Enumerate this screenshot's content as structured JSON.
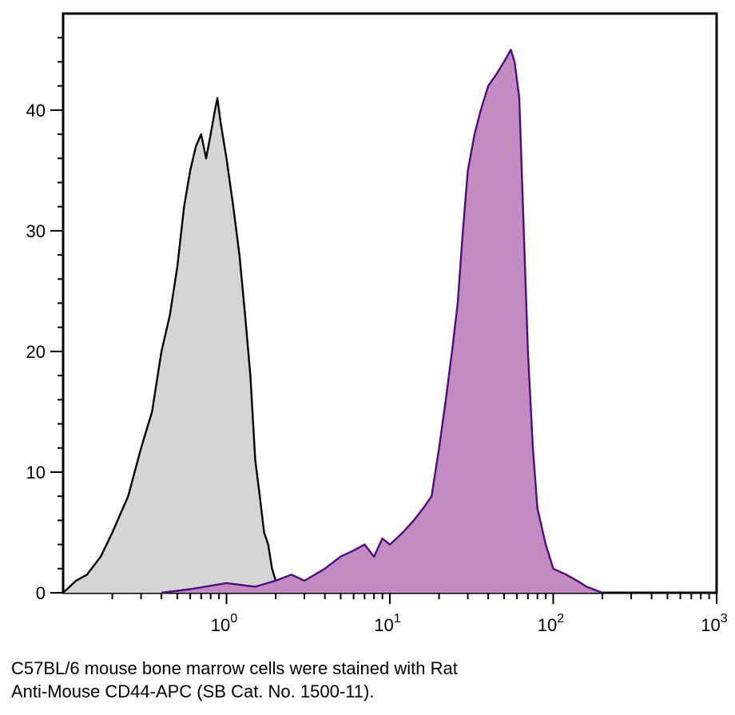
{
  "chart_data": {
    "type": "area",
    "title": "",
    "xlabel": "",
    "ylabel": "",
    "x_scale": "log",
    "xlim": [
      0.1,
      1000
    ],
    "ylim": [
      0,
      48
    ],
    "x_ticks": [
      {
        "value": 1,
        "base": "10",
        "exp": "0"
      },
      {
        "value": 10,
        "base": "10",
        "exp": "1"
      },
      {
        "value": 100,
        "base": "10",
        "exp": "2"
      },
      {
        "value": 1000,
        "base": "10",
        "exp": "3"
      }
    ],
    "y_ticks": [
      0,
      10,
      20,
      30,
      40
    ],
    "grid": false,
    "legend": "none",
    "series": [
      {
        "color": "#000000",
        "fill": "#d5d5d5",
        "x": [
          0.1,
          0.12,
          0.14,
          0.17,
          0.2,
          0.25,
          0.3,
          0.35,
          0.4,
          0.45,
          0.5,
          0.55,
          0.6,
          0.65,
          0.7,
          0.75,
          0.8,
          0.85,
          0.88,
          0.92,
          1.0,
          1.1,
          1.2,
          1.3,
          1.4,
          1.5,
          1.6,
          1.7,
          1.8,
          1.9,
          2.0,
          2.1,
          2.25
        ],
        "y": [
          0,
          1,
          1.5,
          3,
          5,
          8,
          12,
          15,
          20,
          23,
          27,
          32,
          35,
          37,
          38,
          36,
          38,
          40,
          41,
          39,
          36,
          32,
          28,
          23,
          18,
          11,
          8,
          5,
          4,
          2,
          1,
          0.5,
          0
        ]
      },
      {
        "color": "#4b0e7d",
        "fill": "#c38bc2",
        "x": [
          0.4,
          0.6,
          1.0,
          1.5,
          2.0,
          2.5,
          3.0,
          4.0,
          5.0,
          6.0,
          7.0,
          8.0,
          9.0,
          10.0,
          12.0,
          14.0,
          16.0,
          18.0,
          20.0,
          22.0,
          24.0,
          26.0,
          28.0,
          30.0,
          33.0,
          36.0,
          40.0,
          45.0,
          50.0,
          55.0,
          58.0,
          62.0,
          66.0,
          70.0,
          75.0,
          80.0,
          90.0,
          100.0,
          120.0,
          140.0,
          160.0,
          200.0
        ],
        "y": [
          0,
          0.3,
          0.8,
          0.5,
          1,
          1.5,
          1,
          2,
          3,
          3.5,
          4,
          3,
          4.5,
          4,
          5,
          6,
          7,
          8,
          12,
          16,
          20,
          24,
          30,
          35,
          38,
          40,
          42,
          43,
          44,
          45,
          44,
          41,
          30,
          20,
          12,
          7,
          4,
          2,
          1.5,
          1,
          0.5,
          0
        ]
      }
    ]
  },
  "caption": {
    "line1": "C57BL/6 mouse bone marrow cells were stained with Rat",
    "line2": "Anti-Mouse CD44-APC (SB Cat. No. 1500-11)."
  }
}
